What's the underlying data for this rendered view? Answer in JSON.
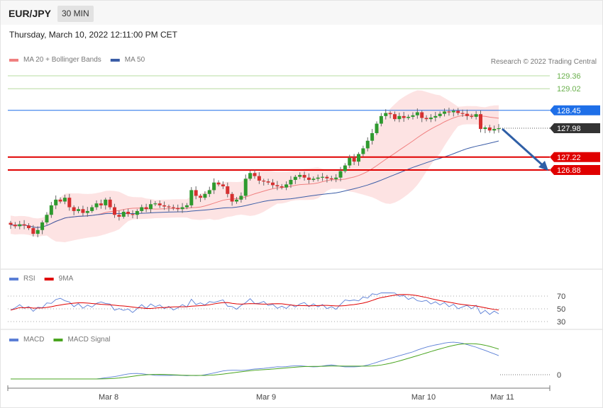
{
  "header": {
    "symbol": "EUR/JPY",
    "interval": "30 MIN",
    "datetime": "Thursday, March 10, 2022 12:11:00 PM CET"
  },
  "credit": "Research © 2022 Trading Central",
  "legend": {
    "price": [
      {
        "label": "MA 20 + Bollinger Bands",
        "color": "#f08080"
      },
      {
        "label": "MA 50",
        "color": "#3b5da7"
      }
    ],
    "rsi": [
      {
        "label": "RSI",
        "color": "#5b7fd6"
      },
      {
        "label": "9MA",
        "color": "#e00000"
      }
    ],
    "macd": [
      {
        "label": "MACD",
        "color": "#5b7fd6"
      },
      {
        "label": "MACD Signal",
        "color": "#4aa520"
      }
    ]
  },
  "chart_data": {
    "type": "candlestick",
    "symbol": "EUR/JPY",
    "x_ticks": [
      "Mar 8",
      "Mar 9",
      "Mar 10",
      "Mar 11"
    ],
    "levels": [
      {
        "value": 129.36,
        "label": "129.36",
        "kind": "resistance",
        "color": "#6ab04c"
      },
      {
        "value": 129.02,
        "label": "129.02",
        "kind": "resistance",
        "color": "#6ab04c"
      },
      {
        "value": 128.45,
        "label": "128.45",
        "kind": "pivot",
        "color": "#1e6fe8"
      },
      {
        "value": 127.98,
        "label": "127.98",
        "kind": "last-price",
        "color": "#333333"
      },
      {
        "value": 127.22,
        "label": "127.22",
        "kind": "support",
        "color": "#e00000"
      },
      {
        "value": 126.88,
        "label": "126.88",
        "kind": "support",
        "color": "#e00000"
      }
    ],
    "close": [
      125.44,
      125.4,
      125.45,
      125.42,
      125.35,
      125.2,
      125.3,
      125.5,
      125.7,
      125.95,
      126.1,
      126.05,
      126.15,
      125.9,
      125.8,
      125.85,
      125.75,
      125.8,
      125.9,
      126.0,
      125.95,
      126.1,
      125.9,
      125.7,
      125.65,
      125.78,
      125.72,
      125.7,
      125.8,
      125.9,
      125.85,
      125.98,
      126.0,
      125.95,
      125.92,
      125.9,
      125.88,
      125.85,
      125.9,
      125.95,
      126.35,
      126.2,
      126.15,
      126.25,
      126.35,
      126.55,
      126.5,
      126.45,
      126.25,
      126.05,
      126.1,
      126.2,
      126.65,
      126.8,
      126.72,
      126.6,
      126.58,
      126.55,
      126.48,
      126.45,
      126.42,
      126.5,
      126.62,
      126.7,
      126.75,
      126.68,
      126.62,
      126.65,
      126.68,
      126.7,
      126.66,
      126.64,
      126.68,
      126.85,
      127.0,
      127.2,
      127.1,
      127.3,
      127.45,
      127.65,
      127.85,
      128.1,
      128.3,
      128.38,
      128.35,
      128.22,
      128.3,
      128.25,
      128.28,
      128.32,
      128.4,
      128.25,
      128.22,
      128.26,
      128.3,
      128.36,
      128.42,
      128.4,
      128.44,
      128.38,
      128.36,
      128.3,
      128.28,
      128.35,
      127.96,
      128.0,
      127.92,
      127.96,
      127.98
    ],
    "rsi": {
      "ylim": [
        20,
        80
      ],
      "ticks": [
        30,
        50,
        70
      ]
    },
    "macd": {
      "zero_label": "0"
    }
  }
}
